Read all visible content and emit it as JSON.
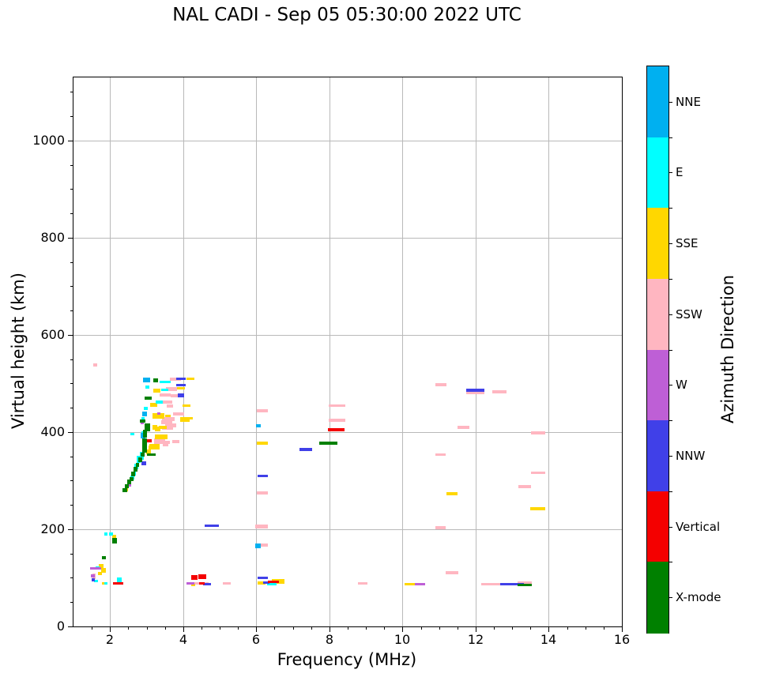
{
  "title": "NAL CADI - Sep 05 05:30:00 2022 UTC",
  "chart_data": {
    "type": "scatter",
    "title": "NAL CADI - Sep 05 05:30:00 2022 UTC",
    "xlabel": "Frequency (MHz)",
    "ylabel": "Virtual height (km)",
    "xlim": [
      1,
      16
    ],
    "ylim": [
      0,
      1130
    ],
    "xticks": [
      2,
      4,
      6,
      8,
      10,
      12,
      14,
      16
    ],
    "yticks": [
      0,
      200,
      400,
      600,
      800,
      1000
    ],
    "x_minor_step": 0.5,
    "y_minor_step": 50,
    "grid": true,
    "grid_color": "#b9b9b9",
    "point_format": "[frequency_MHz, virtual_height_km, width_MHz, height_km]",
    "colorbar": {
      "label": "Azimuth Direction",
      "position": "right",
      "categories_top_to_bottom": [
        {
          "name": "NNE",
          "color": "#00b0f0"
        },
        {
          "name": "E",
          "color": "#00ffff"
        },
        {
          "name": "SSE",
          "color": "#ffd700"
        },
        {
          "name": "SSW",
          "color": "#ffb6c1"
        },
        {
          "name": "W",
          "color": "#be5fd6"
        },
        {
          "name": "NNW",
          "color": "#4040e8"
        },
        {
          "name": "Vertical",
          "color": "#f40000"
        },
        {
          "name": "X-mode",
          "color": "#008000"
        }
      ]
    },
    "series": [
      {
        "name": "SSW",
        "color": "#ffb6c1",
        "points": [
          [
            1.57,
            104,
            0.08,
            12
          ],
          [
            2.3,
            89,
            0.06,
            5
          ],
          [
            1.6,
            538,
            0.1,
            6
          ],
          [
            3.35,
            382,
            0.3,
            12
          ],
          [
            3.55,
            379,
            0.2,
            6
          ],
          [
            3.8,
            380,
            0.2,
            6
          ],
          [
            3.52,
            374,
            0.15,
            6
          ],
          [
            3.65,
            413,
            0.3,
            8
          ],
          [
            3.78,
            509,
            0.3,
            6
          ],
          [
            3.67,
            489,
            0.3,
            8
          ],
          [
            3.5,
            477,
            0.3,
            6
          ],
          [
            3.75,
            474,
            0.2,
            6
          ],
          [
            3.57,
            462,
            0.25,
            6
          ],
          [
            3.63,
            454,
            0.18,
            6
          ],
          [
            3.87,
            438,
            0.3,
            6
          ],
          [
            3.6,
            427,
            0.35,
            8
          ],
          [
            3.55,
            420,
            0.3,
            8
          ],
          [
            3.57,
            409,
            0.3,
            8
          ],
          [
            4.47,
            88,
            0.45,
            5
          ],
          [
            5.2,
            89,
            0.22,
            5
          ],
          [
            6.17,
            444,
            0.3,
            6
          ],
          [
            6.17,
            274,
            0.3,
            6
          ],
          [
            6.15,
            206,
            0.35,
            8
          ],
          [
            6.17,
            167,
            0.3,
            6
          ],
          [
            8.9,
            88,
            0.25,
            5
          ],
          [
            8.2,
            424,
            0.45,
            6
          ],
          [
            8.2,
            455,
            0.45,
            5
          ],
          [
            11.05,
            498,
            0.3,
            6
          ],
          [
            11.35,
            110,
            0.35,
            6
          ],
          [
            11.67,
            409,
            0.32,
            6
          ],
          [
            11.05,
            354,
            0.28,
            4
          ],
          [
            11.05,
            203,
            0.28,
            6
          ],
          [
            12.0,
            481,
            0.5,
            5
          ],
          [
            12.65,
            483,
            0.38,
            6
          ],
          [
            13.7,
            398,
            0.38,
            6
          ],
          [
            13.7,
            317,
            0.38,
            5
          ],
          [
            13.35,
            287,
            0.35,
            6
          ],
          [
            12.5,
            87,
            0.7,
            5
          ],
          [
            13.35,
            90,
            0.38,
            4
          ]
        ]
      },
      {
        "name": "SSE",
        "color": "#ffd700",
        "points": [
          [
            1.75,
            125,
            0.12,
            8
          ],
          [
            1.83,
            116,
            0.14,
            10
          ],
          [
            1.72,
            109,
            0.1,
            6
          ],
          [
            1.82,
            88,
            0.08,
            5
          ],
          [
            2.11,
            185,
            0.1,
            6
          ],
          [
            2.45,
            281,
            0.08,
            6
          ],
          [
            3.05,
            360,
            0.12,
            10
          ],
          [
            3.1,
            369,
            0.1,
            8
          ],
          [
            3.22,
            370,
            0.28,
            12
          ],
          [
            3.45,
            410,
            0.22,
            6
          ],
          [
            3.23,
            410,
            0.12,
            10
          ],
          [
            3.4,
            391,
            0.35,
            10
          ],
          [
            4.2,
            509,
            0.22,
            5
          ],
          [
            3.94,
            491,
            0.22,
            5
          ],
          [
            3.28,
            485,
            0.2,
            8
          ],
          [
            3.2,
            456,
            0.2,
            8
          ],
          [
            4.08,
            455,
            0.22,
            5
          ],
          [
            3.32,
            434,
            0.33,
            12
          ],
          [
            3.58,
            434,
            0.16,
            5
          ],
          [
            4.1,
            429,
            0.35,
            5
          ],
          [
            4.05,
            424,
            0.25,
            5
          ],
          [
            3.3,
            407,
            0.15,
            10
          ],
          [
            4.28,
            86,
            0.1,
            4
          ],
          [
            6.17,
            378,
            0.3,
            6
          ],
          [
            6.15,
            89,
            0.22,
            6
          ],
          [
            6.6,
            92,
            0.35,
            10
          ],
          [
            10.2,
            87,
            0.3,
            5
          ],
          [
            11.35,
            273,
            0.3,
            6
          ],
          [
            13.7,
            242,
            0.4,
            6
          ]
        ]
      },
      {
        "name": "E",
        "color": "#00ffff",
        "points": [
          [
            1.65,
            121,
            0.1,
            6
          ],
          [
            1.62,
            93,
            0.1,
            5
          ],
          [
            1.88,
            88,
            0.08,
            5
          ],
          [
            2.26,
            93,
            0.12,
            14
          ],
          [
            2.03,
            191,
            0.1,
            6
          ],
          [
            1.88,
            190,
            0.08,
            6
          ],
          [
            2.6,
            307,
            0.1,
            8
          ],
          [
            2.66,
            315,
            0.08,
            8
          ],
          [
            2.72,
            330,
            0.1,
            12
          ],
          [
            2.79,
            344,
            0.1,
            14
          ],
          [
            2.86,
            352,
            0.1,
            16
          ],
          [
            2.92,
            397,
            0.1,
            9
          ],
          [
            2.6,
            396,
            0.1,
            5
          ],
          [
            3.5,
            504,
            0.3,
            5
          ],
          [
            3.03,
            493,
            0.1,
            7
          ],
          [
            3.5,
            487,
            0.2,
            5
          ],
          [
            3.35,
            461,
            0.2,
            6
          ],
          [
            2.98,
            448,
            0.1,
            6
          ],
          [
            2.9,
            428,
            0.08,
            6
          ],
          [
            6.42,
            89,
            0.25,
            8
          ]
        ]
      },
      {
        "name": "NNE",
        "color": "#00b0f0",
        "points": [
          [
            3.0,
            508,
            0.2,
            9
          ],
          [
            2.95,
            437,
            0.14,
            9
          ],
          [
            2.9,
            393,
            0.12,
            12
          ],
          [
            6.05,
            166,
            0.15,
            10
          ],
          [
            6.05,
            413,
            0.14,
            6
          ]
        ]
      },
      {
        "name": "W",
        "color": "#be5fd6",
        "points": [
          [
            1.6,
            120,
            0.3,
            3
          ],
          [
            1.53,
            104,
            0.1,
            7
          ],
          [
            4.2,
            89,
            0.22,
            4
          ],
          [
            10.47,
            87,
            0.28,
            5
          ],
          [
            3.33,
            438,
            0.08,
            5
          ],
          [
            2.55,
            291,
            0.06,
            5
          ],
          [
            2.88,
            418,
            0.08,
            4
          ]
        ]
      },
      {
        "name": "NNW",
        "color": "#4040e8",
        "points": [
          [
            1.55,
            96,
            0.08,
            6
          ],
          [
            2.93,
            336,
            0.12,
            8
          ],
          [
            4.78,
            208,
            0.38,
            5
          ],
          [
            4.65,
            87,
            0.22,
            5
          ],
          [
            3.95,
            510,
            0.25,
            5
          ],
          [
            3.95,
            497,
            0.25,
            5
          ],
          [
            3.94,
            476,
            0.18,
            8
          ],
          [
            6.17,
            310,
            0.28,
            5
          ],
          [
            6.17,
            100,
            0.28,
            5
          ],
          [
            6.28,
            90,
            0.18,
            5
          ],
          [
            7.36,
            364,
            0.35,
            6
          ],
          [
            12.0,
            486,
            0.5,
            6
          ],
          [
            13.0,
            87,
            0.65,
            5
          ]
        ]
      },
      {
        "name": "Vertical",
        "color": "#f40000",
        "points": [
          [
            2.22,
            88,
            0.28,
            5
          ],
          [
            4.31,
            101,
            0.18,
            10
          ],
          [
            4.53,
            102,
            0.22,
            10
          ],
          [
            4.51,
            88,
            0.15,
            5
          ],
          [
            3.05,
            382,
            0.18,
            7
          ],
          [
            6.47,
            92,
            0.3,
            5
          ],
          [
            8.19,
            405,
            0.45,
            7
          ]
        ]
      },
      {
        "name": "X-mode",
        "color": "#008000",
        "points": [
          [
            1.83,
            141,
            0.1,
            7
          ],
          [
            2.13,
            177,
            0.14,
            12
          ],
          [
            2.4,
            281,
            0.12,
            8
          ],
          [
            2.46,
            289,
            0.1,
            8
          ],
          [
            2.52,
            297,
            0.1,
            10
          ],
          [
            2.58,
            304,
            0.1,
            8
          ],
          [
            2.64,
            313,
            0.1,
            10
          ],
          [
            2.7,
            323,
            0.1,
            10
          ],
          [
            2.76,
            333,
            0.08,
            8
          ],
          [
            2.83,
            343,
            0.1,
            10
          ],
          [
            2.9,
            353,
            0.1,
            8
          ],
          [
            2.94,
            372,
            0.13,
            30
          ],
          [
            2.96,
            396,
            0.11,
            16
          ],
          [
            3.02,
            410,
            0.15,
            16
          ],
          [
            3.12,
            354,
            0.24,
            5
          ],
          [
            3.25,
            506,
            0.12,
            8
          ],
          [
            3.05,
            470,
            0.2,
            6
          ],
          [
            2.9,
            423,
            0.15,
            6
          ],
          [
            7.97,
            377,
            0.5,
            6
          ],
          [
            13.35,
            86,
            0.38,
            5
          ]
        ]
      }
    ]
  }
}
